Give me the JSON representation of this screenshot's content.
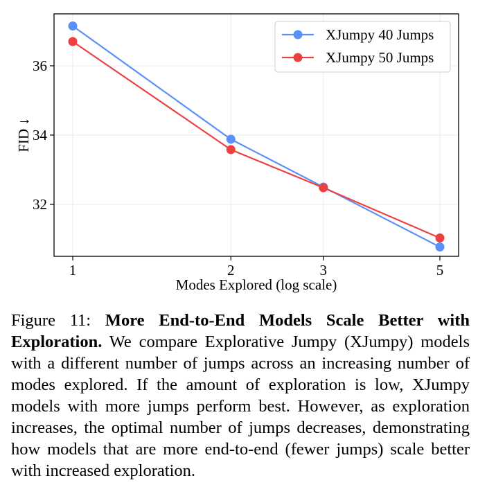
{
  "chart_data": {
    "type": "line",
    "x": [
      1,
      2,
      3,
      5
    ],
    "xscale": "log",
    "xticks": [
      "1",
      "2",
      "3",
      "5"
    ],
    "xlabel": "Modes Explored (log scale)",
    "ylabel": "FID ↓",
    "yticks": [
      32,
      34,
      36
    ],
    "ylim": [
      30.5,
      37.5
    ],
    "grid": true,
    "legend_position": "top-right",
    "series": [
      {
        "name": "XJumpy 40 Jumps",
        "color": "#5b8ff9",
        "values": [
          37.15,
          33.88,
          32.5,
          30.77
        ]
      },
      {
        "name": "XJumpy 50 Jumps",
        "color": "#ee4040",
        "values": [
          36.7,
          33.58,
          32.48,
          31.03
        ]
      }
    ]
  },
  "caption": {
    "label": "Figure 11: ",
    "title": "More End-to-End Models Scale Better with Exploration.",
    "body": " We compare Explorative Jumpy (XJumpy) models with a different number of jumps across an increasing number of modes explored. If the amount of exploration is low, XJumpy models with more jumps perform best. However, as exploration increases, the optimal number of jumps decreases, demonstrating how models that are more end-to-end (fewer jumps) scale better with increased exploration."
  }
}
